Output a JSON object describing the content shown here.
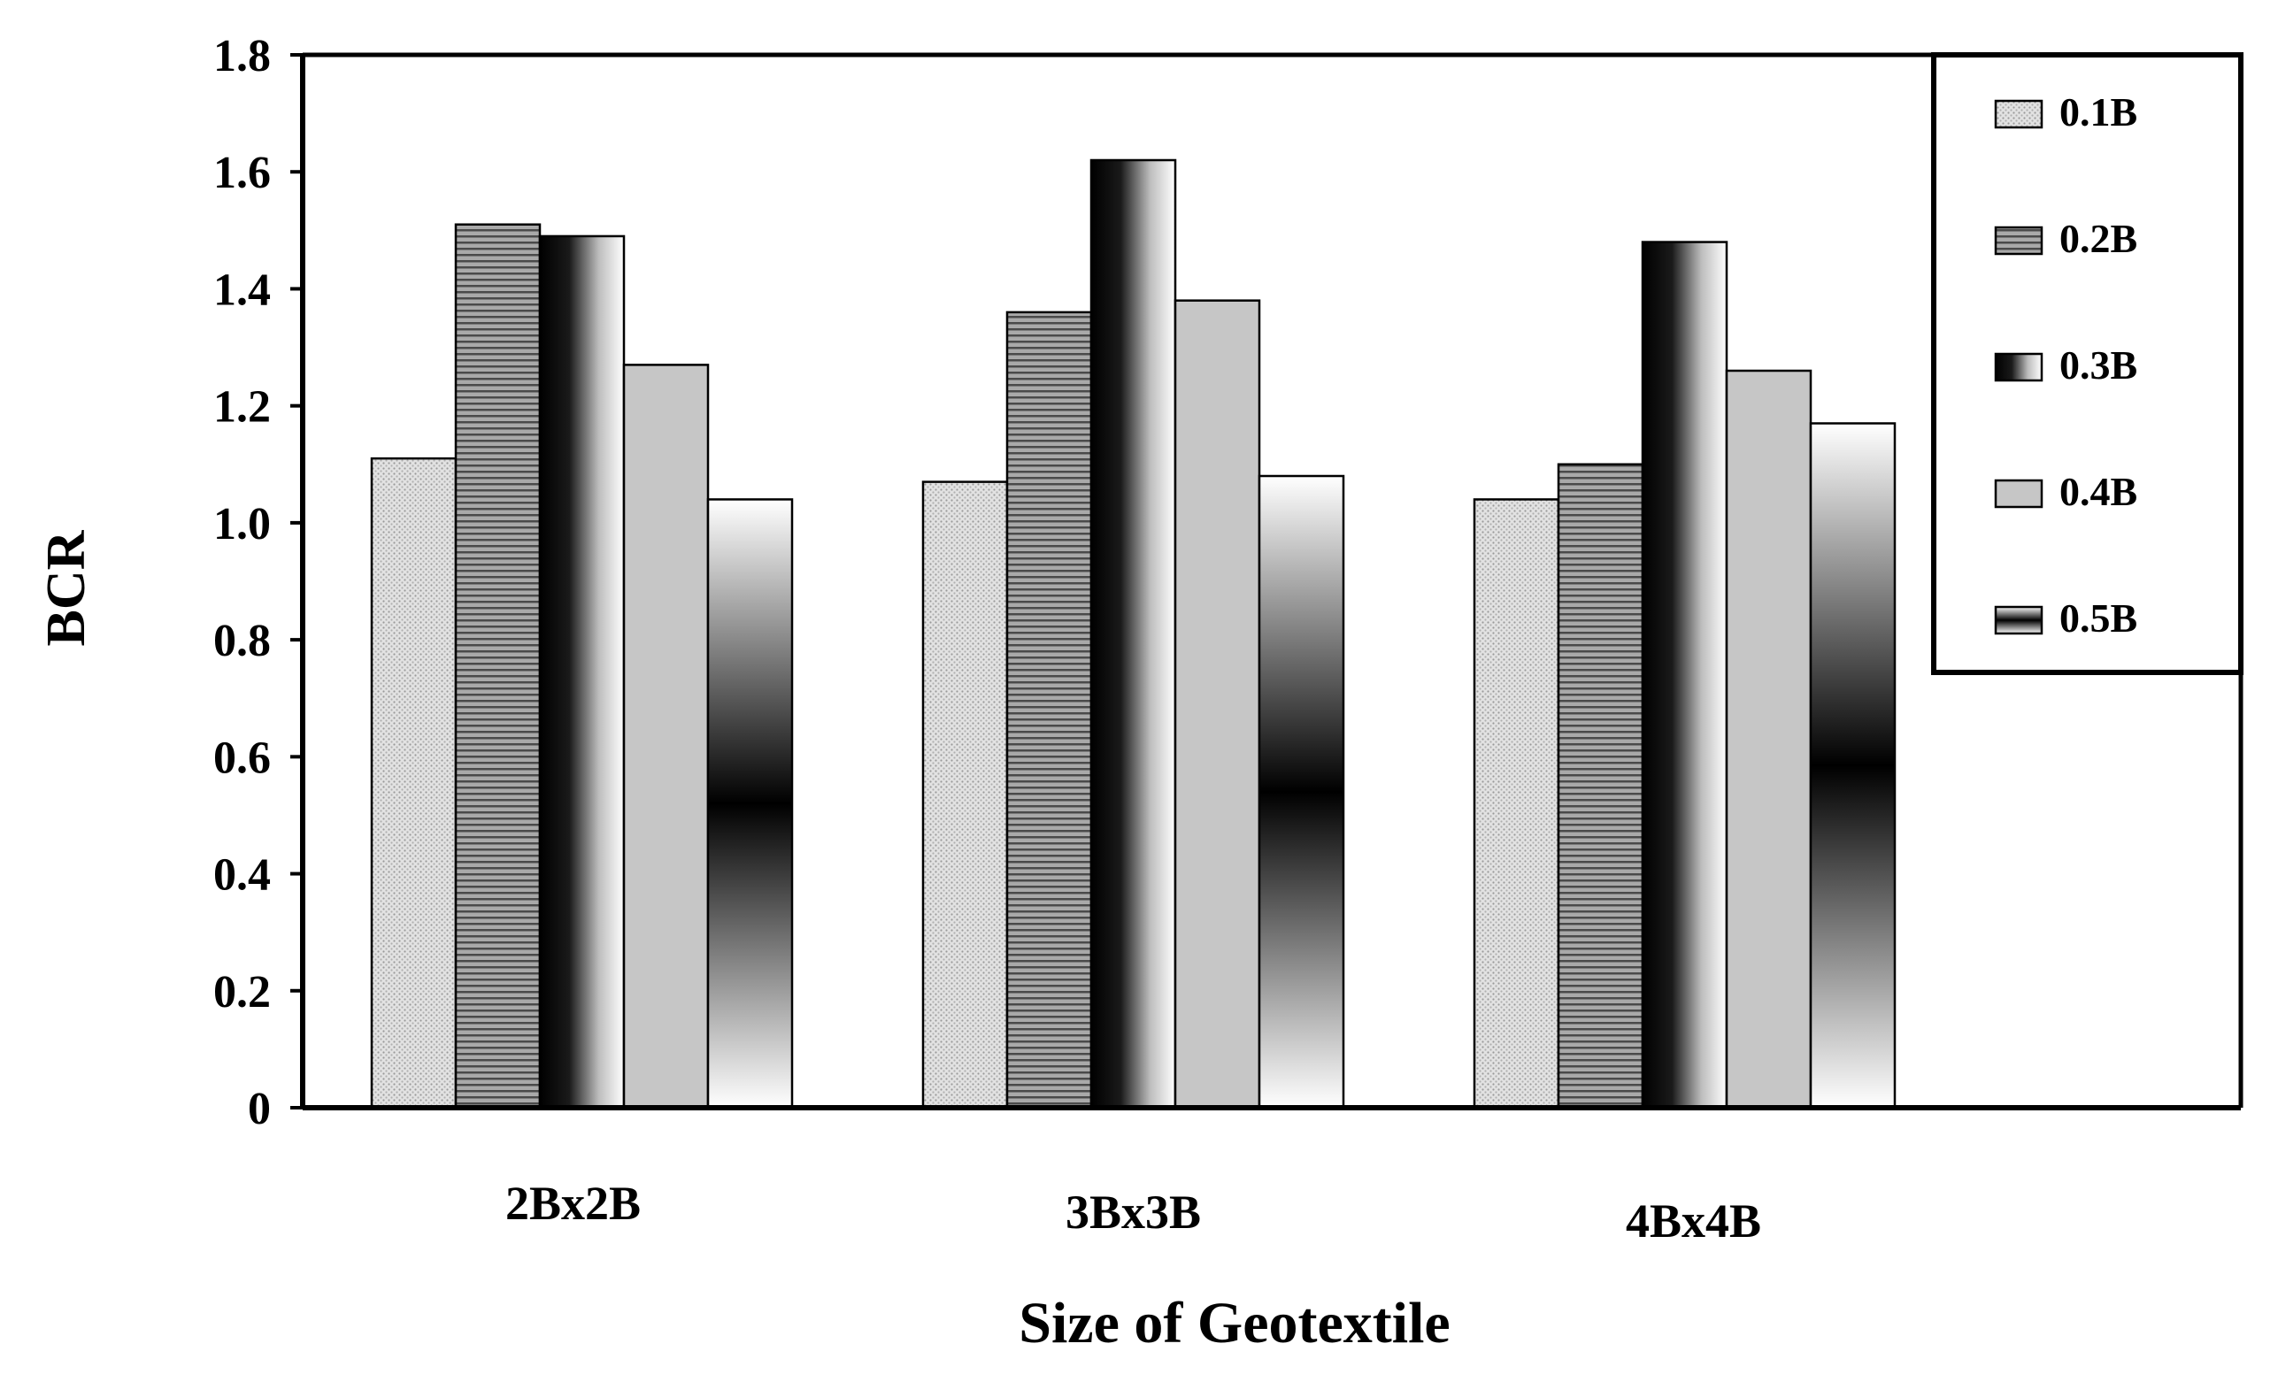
{
  "chart_data": {
    "type": "bar",
    "title": "",
    "xlabel": "Size of Geotextile",
    "ylabel": "BCR",
    "ylim": [
      0,
      1.8
    ],
    "yticks": [
      "0",
      "0.2",
      "0.4",
      "0.6",
      "0.8",
      "1.0",
      "1.2",
      "1.4",
      "1.6",
      "1.8"
    ],
    "categories": [
      "2Bx2B",
      "3Bx3B",
      "4Bx4B"
    ],
    "series": [
      {
        "name": "0.1B",
        "values": [
          1.11,
          1.07,
          1.04
        ],
        "fill": "dots"
      },
      {
        "name": "0.2B",
        "values": [
          1.51,
          1.36,
          1.1
        ],
        "fill": "hlines"
      },
      {
        "name": "0.3B",
        "values": [
          1.49,
          1.62,
          1.48
        ],
        "fill": "horizontal-gradient"
      },
      {
        "name": "0.4B",
        "values": [
          1.27,
          1.38,
          1.26
        ],
        "fill": "gray"
      },
      {
        "name": "0.5B",
        "values": [
          1.04,
          1.08,
          1.17
        ],
        "fill": "vertical-gradient"
      }
    ],
    "grid": false,
    "legend_position": "top-right"
  }
}
